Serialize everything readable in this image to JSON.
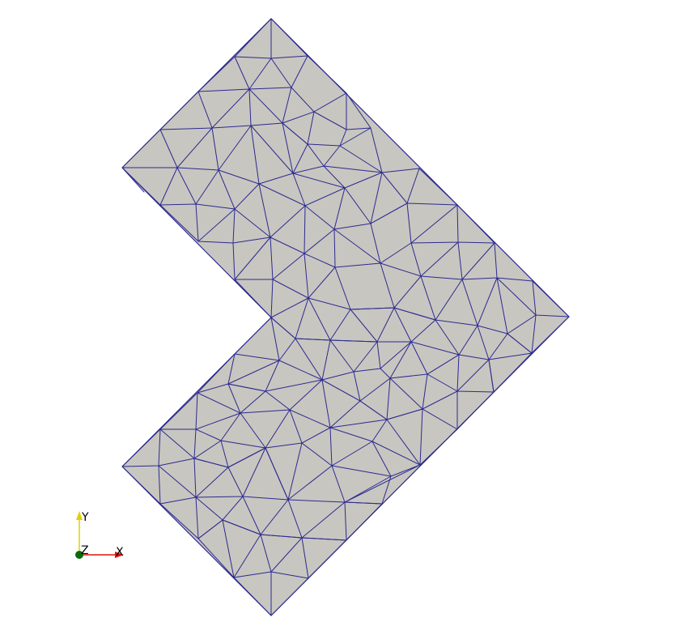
{
  "colors": {
    "background": "#ffffff",
    "mesh_fill": "#c8c6c0",
    "mesh_edge": "#2b2b8f",
    "axis_x": "#e01010",
    "axis_y": "#e0d000",
    "axis_z": "#0a6a0a"
  },
  "axes_triad": {
    "x_label": "X",
    "y_label": "Y",
    "z_label": "Z"
  }
}
